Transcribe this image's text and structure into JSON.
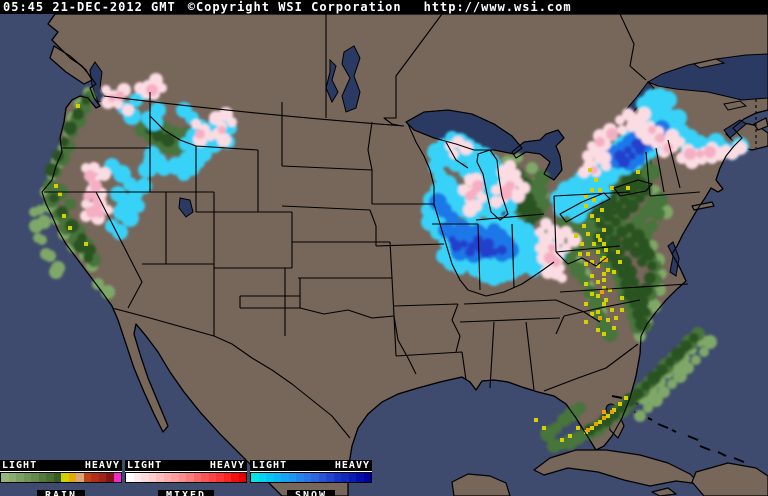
{
  "header": {
    "timestamp": "05:45 21-DEC-2012 GMT",
    "copyright": "©Copyright WSI Corporation",
    "url": "http://www.wsi.com"
  },
  "legend": {
    "sections": [
      {
        "label": "RAIN",
        "scale_left": "LIGHT",
        "scale_right": "HEAVY",
        "colors": [
          "#94b87c",
          "#88ac70",
          "#7ca064",
          "#6f9458",
          "#638849",
          "#53783d",
          "#456c31",
          "#345c24",
          "#d0d000",
          "#e4a800",
          "#d8a87c",
          "#bc4414",
          "#b42c1c",
          "#9c2418",
          "#841414",
          "#f428cc"
        ]
      },
      {
        "label": "MIXED",
        "scale_left": "LIGHT",
        "scale_right": "HEAVY",
        "colors": [
          "#ffffff",
          "#ffecec",
          "#ffdcdc",
          "#ffcccc",
          "#ffbcbc",
          "#ffacac",
          "#ff9c9c",
          "#fc8c8c",
          "#f87c7c",
          "#f86868",
          "#f85454",
          "#f84444",
          "#f83434",
          "#f82424",
          "#f01010",
          "#e80000"
        ]
      },
      {
        "label": "SNOW",
        "scale_left": "LIGHT",
        "scale_right": "HEAVY",
        "colors": [
          "#00e4e4",
          "#00d4f0",
          "#04c4f4",
          "#0cb4f4",
          "#14a4f4",
          "#1c94f0",
          "#2484ec",
          "#2c74e4",
          "#2c64dc",
          "#2854d4",
          "#2044cc",
          "#1834c4",
          "#1028bc",
          "#081cb4",
          "#040cac",
          "#0000a0"
        ]
      }
    ]
  },
  "map_colors": {
    "ocean": "#3e4a6e",
    "land": "#77665a",
    "lake": "#2b3a63",
    "border": "#000000"
  }
}
